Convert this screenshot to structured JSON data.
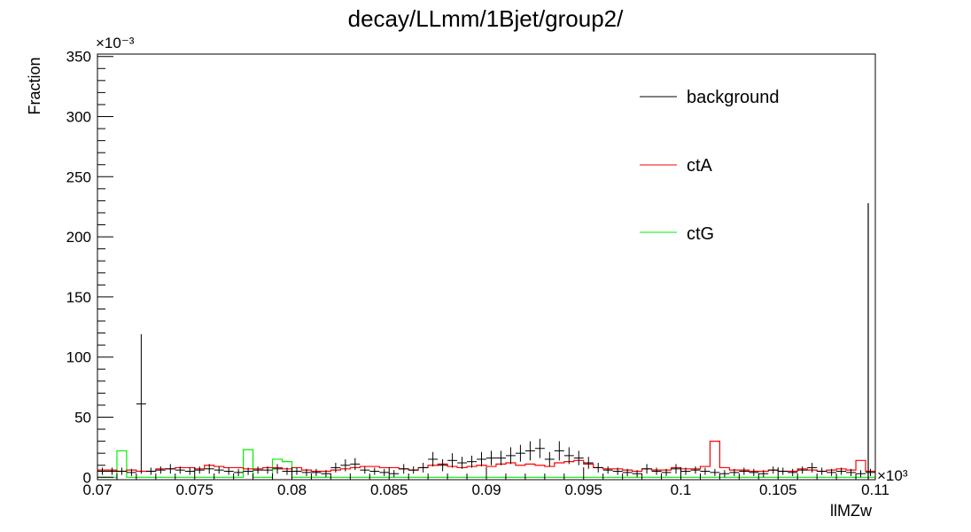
{
  "chart_data": {
    "type": "histogram",
    "title": "decay/LLmm/1Bjet/group2/",
    "xlabel": "llMZw",
    "ylabel": "Fraction",
    "x_multiplier": "×10³",
    "y_multiplier": "×10⁻³",
    "xlim": [
      0.07,
      0.11
    ],
    "ylim": [
      -2,
      352
    ],
    "x_ticks": [
      0.07,
      0.075,
      0.08,
      0.085,
      0.09,
      0.095,
      0.1,
      0.105,
      0.11
    ],
    "x_tick_labels": [
      "0.07",
      "0.075",
      "0.08",
      "0.085",
      "0.09",
      "0.095",
      "0.1",
      "0.105",
      "0.11"
    ],
    "y_ticks": [
      0,
      50,
      100,
      150,
      200,
      250,
      300,
      350
    ],
    "y_tick_labels": [
      "0",
      "50",
      "100",
      "150",
      "200",
      "250",
      "300",
      "350"
    ],
    "bins": 80,
    "legend": {
      "placement": "top-right",
      "entries": [
        "background",
        "ctA",
        "ctG"
      ]
    },
    "series": [
      {
        "name": "background",
        "style": "points-with-errors",
        "color": "#000000",
        "values": [
          5,
          5,
          5,
          4,
          61,
          5,
          6,
          7,
          6,
          5,
          6,
          7,
          6,
          5,
          4,
          5,
          6,
          6,
          7,
          5,
          5,
          4,
          4,
          3,
          8,
          10,
          11,
          6,
          5,
          4,
          3,
          7,
          6,
          8,
          15,
          10,
          14,
          12,
          13,
          15,
          16,
          16,
          18,
          20,
          22,
          24,
          15,
          22,
          18,
          16,
          12,
          8,
          6,
          5,
          4,
          3,
          7,
          5,
          4,
          7,
          5,
          6,
          5,
          4,
          3,
          4,
          5,
          4,
          3,
          6,
          5,
          4,
          6,
          8,
          5,
          4,
          5,
          4,
          3,
          4
        ],
        "errors": [
          3,
          3,
          3,
          3,
          58,
          3,
          3,
          4,
          3,
          3,
          3,
          4,
          3,
          3,
          3,
          3,
          3,
          3,
          4,
          3,
          3,
          3,
          3,
          3,
          4,
          5,
          5,
          3,
          3,
          3,
          3,
          4,
          3,
          4,
          6,
          5,
          6,
          5,
          5,
          6,
          6,
          6,
          7,
          7,
          8,
          8,
          6,
          8,
          7,
          6,
          5,
          4,
          3,
          3,
          3,
          3,
          4,
          3,
          3,
          4,
          3,
          3,
          3,
          3,
          3,
          3,
          3,
          3,
          3,
          3,
          3,
          3,
          3,
          4,
          3,
          3,
          3,
          3,
          3,
          3
        ],
        "overflow_bar": 228
      },
      {
        "name": "ctA",
        "style": "step",
        "color": "#ff0000",
        "values": [
          6,
          6,
          5,
          6,
          5,
          5,
          7,
          7,
          8,
          8,
          7,
          10,
          9,
          8,
          8,
          7,
          7,
          8,
          8,
          7,
          8,
          6,
          5,
          5,
          6,
          7,
          8,
          9,
          9,
          8,
          8,
          7,
          6,
          8,
          10,
          11,
          9,
          8,
          9,
          10,
          9,
          11,
          12,
          10,
          11,
          10,
          9,
          12,
          13,
          14,
          11,
          8,
          7,
          7,
          6,
          5,
          7,
          6,
          6,
          8,
          7,
          7,
          9,
          30,
          8,
          6,
          6,
          5,
          5,
          6,
          5,
          5,
          7,
          6,
          5,
          6,
          7,
          6,
          14,
          5
        ],
        "overflow_bar": 0
      },
      {
        "name": "ctG",
        "style": "step",
        "color": "#00ee00",
        "values": [
          0,
          0,
          22,
          0,
          0,
          0,
          0,
          0,
          0,
          0,
          0,
          0,
          0,
          0,
          0,
          23,
          0,
          0,
          15,
          13,
          0,
          0,
          0,
          0,
          0,
          0,
          0,
          0,
          0,
          0,
          0,
          0,
          0,
          0,
          0,
          0,
          0,
          0,
          0,
          0,
          0,
          0,
          0,
          0,
          0,
          0,
          0,
          0,
          0,
          0,
          0,
          0,
          0,
          0,
          0,
          0,
          0,
          0,
          0,
          0,
          0,
          0,
          0,
          0,
          0,
          0,
          0,
          0,
          0,
          0,
          0,
          0,
          0,
          0,
          0,
          0,
          0,
          0,
          0,
          0
        ],
        "overflow_bar": 0
      }
    ]
  }
}
